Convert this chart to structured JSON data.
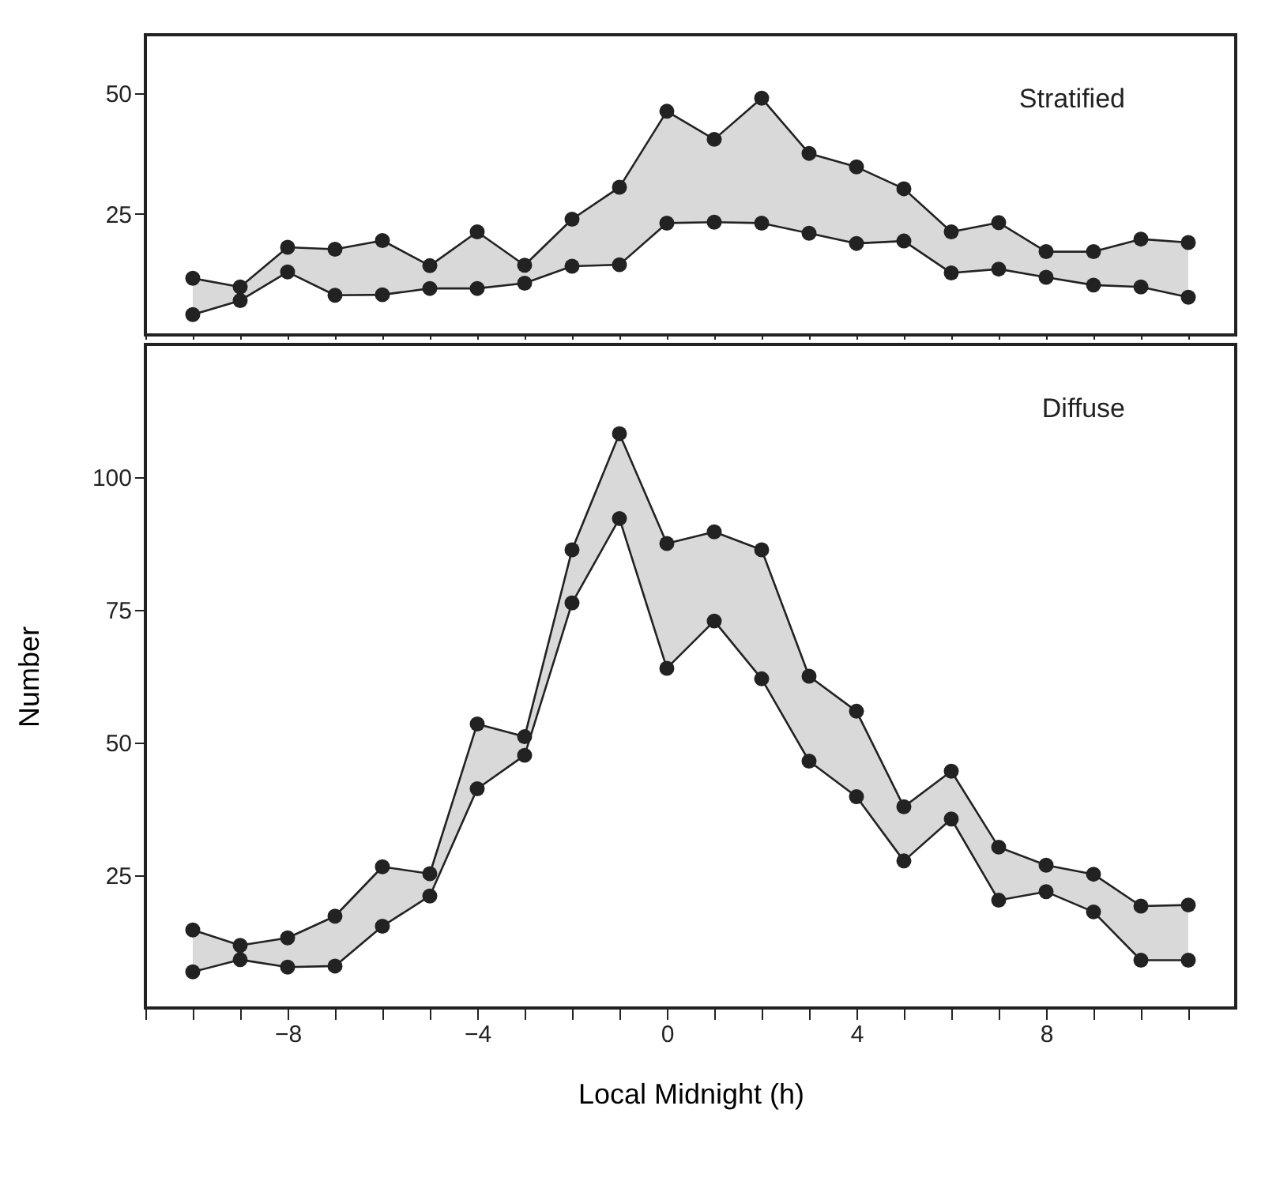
{
  "chart_data": [
    {
      "type": "line",
      "title": "Stratified",
      "x": [
        -10,
        -9,
        -8,
        -7,
        -6,
        -5,
        -4,
        -3,
        -2,
        -1,
        0,
        1,
        2,
        3,
        4,
        5,
        6,
        7,
        8,
        9,
        10,
        11
      ],
      "xlim": [
        -11,
        12
      ],
      "xticks": [
        {
          "value": -11,
          "label": null
        },
        {
          "value": -10,
          "label": null
        },
        {
          "value": -9,
          "label": null
        },
        {
          "value": -8,
          "label": null
        },
        {
          "value": -7,
          "label": null
        },
        {
          "value": -6,
          "label": null
        },
        {
          "value": -5,
          "label": null
        },
        {
          "value": -4,
          "label": null
        },
        {
          "value": -3,
          "label": null
        },
        {
          "value": -2,
          "label": null
        },
        {
          "value": -1,
          "label": null
        },
        {
          "value": 0,
          "label": null
        },
        {
          "value": 1,
          "label": null
        },
        {
          "value": 2,
          "label": null
        },
        {
          "value": 3,
          "label": null
        },
        {
          "value": 4,
          "label": null
        },
        {
          "value": 5,
          "label": null
        },
        {
          "value": 6,
          "label": null
        },
        {
          "value": 7,
          "label": null
        },
        {
          "value": 8,
          "label": null
        },
        {
          "value": 9,
          "label": null
        },
        {
          "value": 10,
          "label": null
        },
        {
          "value": 11,
          "label": null
        }
      ],
      "ylim": [
        0,
        62
      ],
      "yticks": [
        25,
        50
      ],
      "tick_labels": "y",
      "marker": "circle",
      "grid": false,
      "legend": false,
      "series": [
        {
          "color": "#222222",
          "values": [
            11.7,
            9.9,
            18.1,
            17.7,
            19.5,
            14.3,
            21.3,
            14.4,
            23.9,
            30.5,
            46.2,
            40.4,
            48.9,
            37.5,
            34.7,
            30.2,
            21.3,
            23.2,
            17.2,
            17.2,
            19.8,
            19.1
          ],
          "lower": [
            4.2,
            7.1,
            13,
            8.2,
            8.3,
            9.6,
            9.6,
            10.7,
            14.2,
            14.5,
            23.1,
            23.3,
            23.1,
            21,
            18.9,
            19.4,
            12.8,
            13.6,
            11.9,
            10.3,
            9.9,
            7.8
          ],
          "upper": [
            11.7,
            9.9,
            18.1,
            17.7,
            19.5,
            14.3,
            21.3,
            14.4,
            23.9,
            30.5,
            46.2,
            40.4,
            48.9,
            37.5,
            34.7,
            30.2,
            21.3,
            23.2,
            17.2,
            17.2,
            19.8,
            19.1
          ]
        },
        {
          "color": "#222222",
          "values": [
            4.2,
            7.1,
            13,
            8.2,
            8.3,
            9.6,
            9.6,
            10.7,
            14.2,
            14.5,
            23.1,
            23.3,
            23.1,
            21,
            18.9,
            19.4,
            12.8,
            13.6,
            11.9,
            10.3,
            9.9,
            7.8
          ]
        }
      ]
    },
    {
      "type": "line",
      "title": "Diffuse",
      "xlabel": "Local Midnight (h)",
      "ylabel": "Number",
      "x": [
        -10,
        -9,
        -8,
        -7,
        -6,
        -5,
        -4,
        -3,
        -2,
        -1,
        0,
        1,
        2,
        3,
        4,
        5,
        6,
        7,
        8,
        9,
        10,
        11
      ],
      "xlim": [
        -11,
        12
      ],
      "xticks": [
        {
          "value": -11,
          "label": null
        },
        {
          "value": -10,
          "label": null
        },
        {
          "value": -9,
          "label": null
        },
        {
          "value": -8,
          "label": "−8"
        },
        {
          "value": -7,
          "label": null
        },
        {
          "value": -6,
          "label": null
        },
        {
          "value": -5,
          "label": null
        },
        {
          "value": -4,
          "label": "−4"
        },
        {
          "value": -3,
          "label": null
        },
        {
          "value": -2,
          "label": null
        },
        {
          "value": -1,
          "label": null
        },
        0,
        {
          "value": 1,
          "label": null
        },
        {
          "value": 2,
          "label": null
        },
        {
          "value": 3,
          "label": null
        },
        4,
        {
          "value": 5,
          "label": null
        },
        {
          "value": 6,
          "label": null
        },
        {
          "value": 7,
          "label": null
        },
        8,
        {
          "value": 9,
          "label": null
        },
        {
          "value": 10,
          "label": null
        },
        {
          "value": 11,
          "label": null
        }
      ],
      "ylim": [
        0,
        125
      ],
      "yticks": [
        25,
        50,
        75,
        100
      ],
      "marker": "circle",
      "grid": false,
      "legend": false,
      "series": [
        {
          "color": "#222222",
          "values": [
            14.7,
            11.8,
            13.2,
            17.3,
            26.6,
            25.3,
            53.5,
            51.1,
            86.3,
            108.2,
            87.5,
            89.7,
            86.3,
            62.5,
            55.9,
            37.9,
            44.6,
            30.3,
            26.9,
            25.2,
            19.2,
            19.4
          ],
          "lower": [
            6.8,
            9.1,
            7.7,
            7.9,
            15.4,
            21.1,
            41.3,
            47.6,
            76.3,
            92.2,
            64,
            72.9,
            62,
            46.5,
            39.8,
            27.7,
            35.6,
            20.3,
            21.9,
            18.1,
            9,
            9
          ],
          "upper": [
            14.7,
            11.8,
            13.2,
            17.3,
            26.6,
            25.3,
            53.5,
            51.1,
            86.3,
            108.2,
            87.5,
            89.7,
            86.3,
            62.5,
            55.9,
            37.9,
            44.6,
            30.3,
            26.9,
            25.2,
            19.2,
            19.4
          ]
        },
        {
          "color": "#222222",
          "values": [
            6.8,
            9.1,
            7.7,
            7.9,
            15.4,
            21.1,
            41.3,
            47.6,
            76.3,
            92.2,
            64,
            72.9,
            62,
            46.5,
            39.8,
            27.7,
            35.6,
            20.3,
            21.9,
            18.1,
            9,
            9
          ]
        }
      ]
    }
  ]
}
